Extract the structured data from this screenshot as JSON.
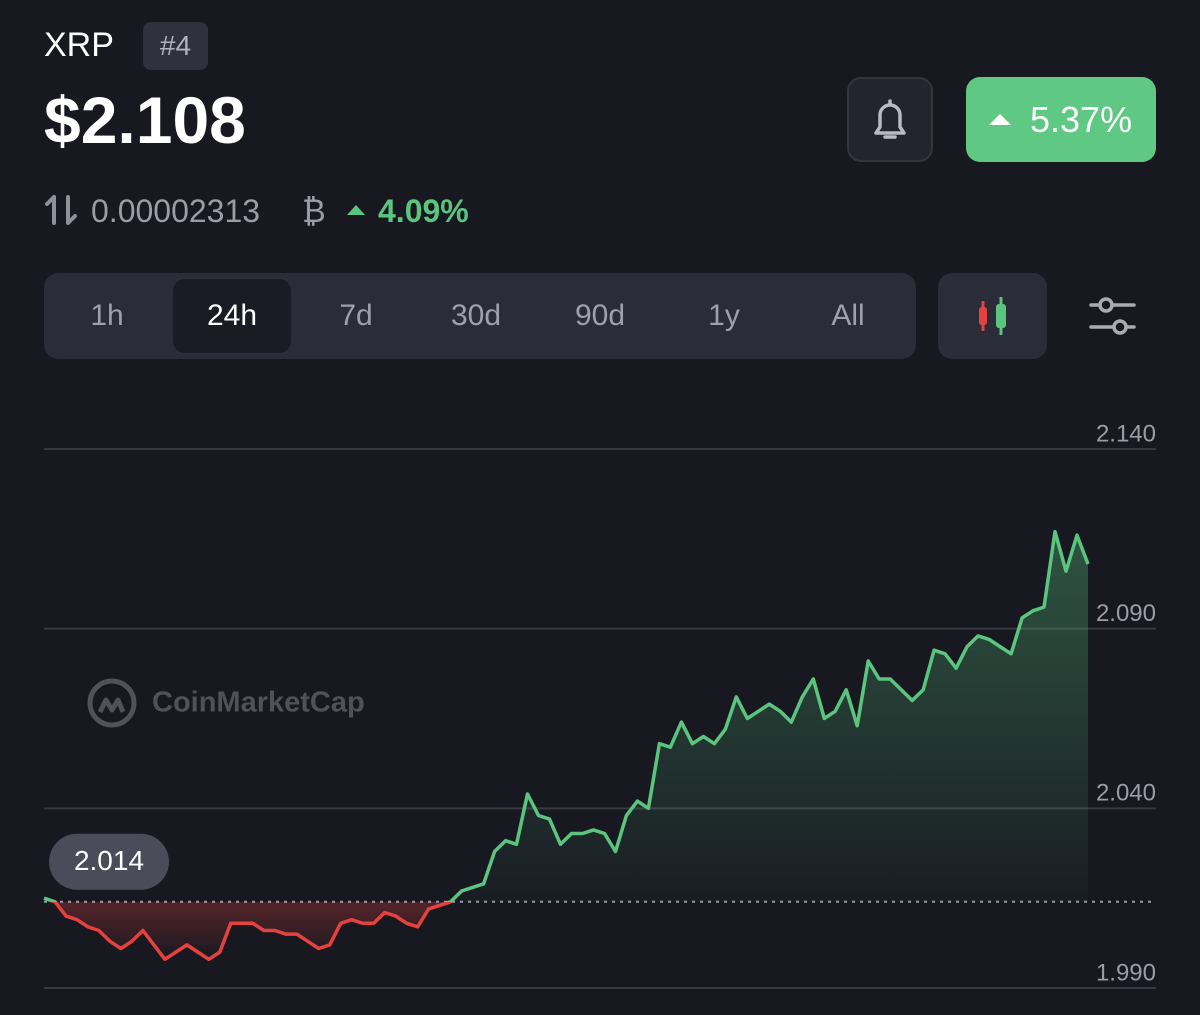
{
  "header": {
    "name": "XRP",
    "rank": "#4",
    "price": "$2.108",
    "change": "5.37%",
    "btc_price": "0.00002313",
    "btc_symbol": "₿",
    "btc_change": "4.09%"
  },
  "tabs": {
    "items": [
      "1h",
      "24h",
      "7d",
      "30d",
      "90d",
      "1y",
      "All"
    ],
    "selected": 1
  },
  "watermark": "CoinMarketCap",
  "chart_data": {
    "type": "line",
    "values": [
      2.015,
      2.014,
      2.01,
      2.009,
      2.007,
      2.006,
      2.003,
      2.001,
      2.003,
      2.006,
      2.002,
      1.998,
      2.0,
      2.002,
      2.0,
      1.998,
      2.0,
      2.008,
      2.008,
      2.008,
      2.006,
      2.006,
      2.005,
      2.005,
      2.003,
      2.001,
      2.002,
      2.008,
      2.009,
      2.008,
      2.008,
      2.011,
      2.01,
      2.008,
      2.007,
      2.012,
      2.013,
      2.014,
      2.017,
      2.018,
      2.019,
      2.028,
      2.031,
      2.03,
      2.044,
      2.038,
      2.037,
      2.03,
      2.033,
      2.033,
      2.034,
      2.033,
      2.028,
      2.038,
      2.042,
      2.04,
      2.058,
      2.057,
      2.064,
      2.058,
      2.06,
      2.058,
      2.062,
      2.071,
      2.065,
      2.067,
      2.069,
      2.067,
      2.064,
      2.071,
      2.076,
      2.065,
      2.067,
      2.073,
      2.063,
      2.081,
      2.076,
      2.076,
      2.073,
      2.07,
      2.073,
      2.084,
      2.083,
      2.079,
      2.085,
      2.088,
      2.087,
      2.085,
      2.083,
      2.093,
      2.095,
      2.096,
      2.117,
      2.106,
      2.116,
      2.108
    ],
    "reference_value": 2.014,
    "up_color": "#5bc47f",
    "down_color": "#e5423f",
    "ylim": [
      1.99,
      2.14
    ],
    "yticks": [
      {
        "value": 1.99,
        "label": "1.990"
      },
      {
        "value": 2.04,
        "label": "2.040"
      },
      {
        "value": 2.09,
        "label": "2.090"
      },
      {
        "value": 2.14,
        "label": "2.140"
      }
    ],
    "grid": true
  }
}
